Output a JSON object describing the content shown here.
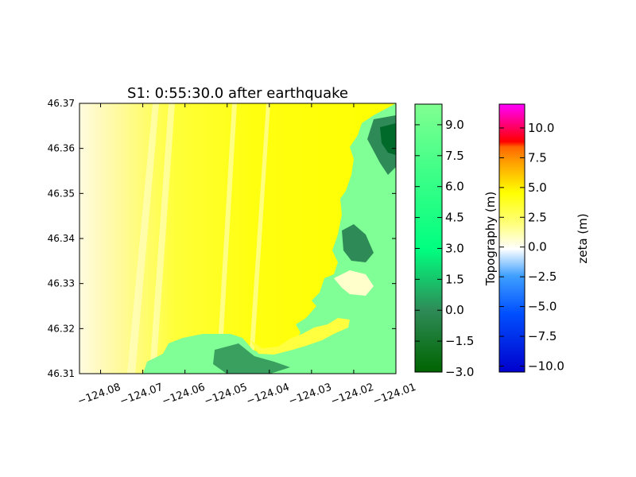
{
  "chart_data": {
    "type": "heatmap",
    "title": "S1: 0:55:30.0 after earthquake",
    "xlabel": "",
    "ylabel": "",
    "xlim": [
      -124.085,
      -124.01
    ],
    "ylim": [
      46.31,
      46.37
    ],
    "x_ticks": [
      "−124.08",
      "−124.07",
      "−124.06",
      "−124.05",
      "−124.04",
      "−124.03",
      "−124.02",
      "−124.01"
    ],
    "x_tick_values": [
      -124.08,
      -124.07,
      -124.06,
      -124.05,
      -124.04,
      -124.03,
      -124.02,
      -124.01
    ],
    "y_ticks": [
      "46.31",
      "46.32",
      "46.33",
      "46.34",
      "46.35",
      "46.36",
      "46.37"
    ],
    "y_tick_values": [
      46.31,
      46.32,
      46.33,
      46.34,
      46.35,
      46.36,
      46.37
    ],
    "colorbars": [
      {
        "label": "Topography (m)",
        "range": [
          -3.0,
          10.0
        ],
        "ticks": [
          "−3.0",
          "−1.5",
          "0.0",
          "1.5",
          "3.0",
          "4.5",
          "6.0",
          "7.5",
          "9.0"
        ],
        "tick_values": [
          -3.0,
          -1.5,
          0.0,
          1.5,
          3.0,
          4.5,
          6.0,
          7.5,
          9.0
        ],
        "colors": [
          "#006400",
          "#2e8b57",
          "#00ff80",
          "#7fff95"
        ]
      },
      {
        "label": "zeta (m)",
        "range": [
          -10.5,
          12.0
        ],
        "ticks": [
          "−10.0",
          "−7.5",
          "−5.0",
          "−2.5",
          "0.0",
          "2.5",
          "5.0",
          "7.5",
          "10.0"
        ],
        "tick_values": [
          -10.0,
          -7.5,
          -5.0,
          -2.5,
          0.0,
          2.5,
          5.0,
          7.5,
          10.0
        ],
        "colors": [
          "#0000cc",
          "#0080ff",
          "#ffffff",
          "#ffff00",
          "#ff8000",
          "#ff0000",
          "#ff00ff"
        ]
      }
    ]
  }
}
